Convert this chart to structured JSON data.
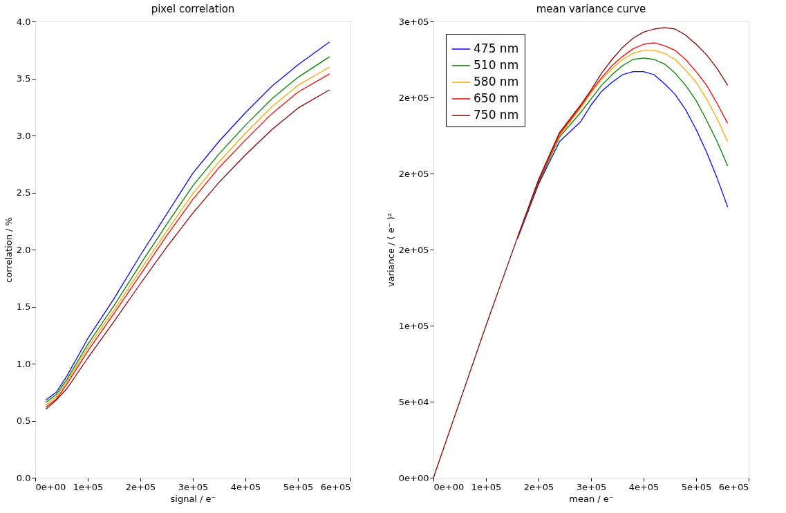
{
  "chart_data": [
    {
      "type": "line",
      "title": "pixel correlation",
      "xlabel": "signal / e⁻",
      "ylabel": "correlation / %",
      "grid": false,
      "legend": false,
      "line_style": "solid",
      "marker": "none",
      "x": [
        20000,
        40000,
        60000,
        100000,
        150000,
        200000,
        250000,
        300000,
        350000,
        400000,
        450000,
        500000,
        560000
      ],
      "xlim": [
        0,
        600000
      ],
      "xticks": [
        {
          "value": 0,
          "label": "0e+00"
        },
        {
          "value": 100000,
          "label": "1e+05"
        },
        {
          "value": 200000,
          "label": "2e+05"
        },
        {
          "value": 300000,
          "label": "3e+05"
        },
        {
          "value": 400000,
          "label": "4e+05"
        },
        {
          "value": 500000,
          "label": "5e+05"
        },
        {
          "value": 600000,
          "label": "6e+05"
        }
      ],
      "ylim": [
        0,
        4
      ],
      "yticks": [
        {
          "value": 0,
          "label": "0.0"
        },
        {
          "value": 0.5,
          "label": "0.5"
        },
        {
          "value": 1,
          "label": "1.0"
        },
        {
          "value": 1.5,
          "label": "1.5"
        },
        {
          "value": 2,
          "label": "2.0"
        },
        {
          "value": 2.5,
          "label": "2.5"
        },
        {
          "value": 3,
          "label": "3.0"
        },
        {
          "value": 3.5,
          "label": "3.5"
        },
        {
          "value": 4,
          "label": "4.0"
        }
      ],
      "series": [
        {
          "color": "#0000ff",
          "values": [
            0.68,
            0.75,
            0.89,
            1.22,
            1.57,
            1.95,
            2.31,
            2.67,
            2.95,
            3.2,
            3.43,
            3.62,
            3.82
          ]
        },
        {
          "color": "#008000",
          "values": [
            0.66,
            0.73,
            0.86,
            1.17,
            1.51,
            1.87,
            2.22,
            2.56,
            2.84,
            3.09,
            3.32,
            3.51,
            3.69
          ]
        },
        {
          "color": "#ffa500",
          "values": [
            0.64,
            0.71,
            0.84,
            1.14,
            1.47,
            1.82,
            2.16,
            2.49,
            2.77,
            3.02,
            3.25,
            3.44,
            3.6
          ]
        },
        {
          "color": "#ff0000",
          "values": [
            0.62,
            0.69,
            0.82,
            1.11,
            1.44,
            1.78,
            2.12,
            2.44,
            2.72,
            2.96,
            3.19,
            3.38,
            3.54
          ]
        },
        {
          "color": "#8b0000",
          "values": [
            0.6,
            0.68,
            0.78,
            1.05,
            1.37,
            1.7,
            2.02,
            2.32,
            2.59,
            2.83,
            3.05,
            3.24,
            3.4
          ]
        }
      ]
    },
    {
      "type": "line",
      "title": "mean variance curve",
      "xlabel": "mean / e⁻",
      "ylabel": "variance / ( e⁻ )²",
      "grid": false,
      "legend": "top left",
      "line_style": "solid",
      "marker": "none",
      "x": [
        0,
        100000,
        160000,
        200000,
        240000,
        280000,
        300000,
        320000,
        340000,
        360000,
        380000,
        400000,
        420000,
        440000,
        460000,
        480000,
        500000,
        520000,
        540000,
        560000
      ],
      "xlim": [
        0,
        600000
      ],
      "xticks": [
        {
          "value": 0,
          "label": "0e+00"
        },
        {
          "value": 100000,
          "label": "1e+05"
        },
        {
          "value": 200000,
          "label": "2e+05"
        },
        {
          "value": 300000,
          "label": "3e+05"
        },
        {
          "value": 400000,
          "label": "4e+05"
        },
        {
          "value": 500000,
          "label": "5e+05"
        },
        {
          "value": 600000,
          "label": "6e+05"
        }
      ],
      "ylim": [
        0,
        300000
      ],
      "yticks": [
        {
          "value": 0,
          "label": "0e+00"
        },
        {
          "value": 50000,
          "label": "5e+04"
        },
        {
          "value": 100000,
          "label": "1e+05"
        },
        {
          "value": 150000,
          "label": "2e+05"
        },
        {
          "value": 200000,
          "label": "2e+05"
        },
        {
          "value": 250000,
          "label": "2e+05"
        },
        {
          "value": 300000,
          "label": "3e+05"
        }
      ],
      "series": [
        {
          "name": "475 nm",
          "color": "#0000ff",
          "values": [
            null,
            null,
            157000,
            193000,
            221000,
            234000,
            245000,
            254000,
            260000,
            265000,
            267000,
            267000,
            265000,
            259000,
            252000,
            242000,
            229000,
            214000,
            197000,
            178000
          ]
        },
        {
          "name": "510 nm",
          "color": "#008000",
          "values": [
            null,
            null,
            158000,
            194000,
            224000,
            240000,
            249000,
            258000,
            265000,
            271000,
            275000,
            276000,
            275000,
            272000,
            266000,
            258000,
            248000,
            235000,
            221000,
            205000
          ]
        },
        {
          "name": "580 nm",
          "color": "#ffa500",
          "values": [
            null,
            null,
            158000,
            195000,
            225000,
            243000,
            253000,
            262000,
            269000,
            275000,
            279000,
            281000,
            281000,
            279000,
            275000,
            268000,
            260000,
            249000,
            236000,
            221000
          ]
        },
        {
          "name": "650 nm",
          "color": "#ff0000",
          "values": [
            null,
            null,
            158000,
            195000,
            226000,
            244000,
            254000,
            263000,
            271000,
            277000,
            282000,
            285000,
            286000,
            284000,
            281000,
            275000,
            267000,
            258000,
            246000,
            233000
          ]
        },
        {
          "name": "750 nm",
          "color": "#8b0000",
          "values": [
            0,
            100000,
            158000,
            196000,
            227000,
            245000,
            255000,
            266000,
            275000,
            283000,
            289000,
            293000,
            295000,
            296000,
            295000,
            291000,
            285000,
            278000,
            269000,
            258000
          ]
        }
      ]
    }
  ]
}
